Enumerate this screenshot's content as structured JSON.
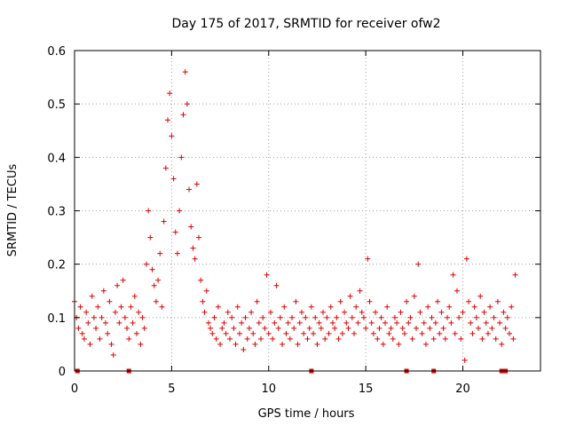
{
  "chart_data": {
    "type": "scatter",
    "title": "Day 175 of 2017, SRMTID for receiver ofw2",
    "xlabel": "GPS time / hours",
    "ylabel": "SRMTID / TECUs",
    "xlim": [
      0,
      24
    ],
    "ylim": [
      0,
      0.6
    ],
    "x_ticks": [
      0,
      5,
      10,
      15,
      20
    ],
    "y_ticks": [
      0,
      0.1,
      0.2,
      0.3,
      0.4,
      0.5,
      0.6
    ],
    "grid": true,
    "marker": "+",
    "color": "#e00000",
    "series": [
      {
        "name": "SRMTID",
        "x": [
          0.0,
          0.1,
          0.2,
          0.3,
          0.4,
          0.5,
          0.6,
          0.7,
          0.8,
          0.9,
          1.0,
          1.1,
          1.2,
          1.3,
          1.4,
          1.5,
          1.6,
          1.7,
          1.8,
          1.9,
          2.0,
          2.1,
          2.2,
          2.3,
          2.4,
          2.5,
          2.6,
          2.7,
          2.8,
          2.9,
          3.0,
          3.1,
          3.2,
          3.3,
          3.4,
          3.5,
          3.6,
          3.7,
          3.8,
          3.9,
          4.0,
          4.1,
          4.2,
          4.3,
          4.4,
          4.5,
          4.6,
          4.7,
          4.8,
          4.9,
          5.0,
          5.1,
          5.2,
          5.3,
          5.4,
          5.5,
          5.6,
          5.7,
          5.8,
          5.9,
          6.0,
          6.1,
          6.2,
          6.3,
          6.4,
          6.5,
          6.6,
          6.7,
          6.8,
          6.9,
          7.0,
          7.1,
          7.2,
          7.3,
          7.4,
          7.5,
          7.6,
          7.7,
          7.8,
          7.9,
          8.0,
          8.1,
          8.2,
          8.3,
          8.4,
          8.5,
          8.6,
          8.7,
          8.8,
          8.9,
          9.0,
          9.1,
          9.2,
          9.3,
          9.4,
          9.5,
          9.6,
          9.7,
          9.8,
          9.9,
          10.0,
          10.1,
          10.2,
          10.3,
          10.4,
          10.5,
          10.6,
          10.7,
          10.8,
          10.9,
          11.0,
          11.1,
          11.2,
          11.3,
          11.4,
          11.5,
          11.6,
          11.7,
          11.8,
          11.9,
          12.0,
          12.1,
          12.2,
          12.3,
          12.4,
          12.5,
          12.6,
          12.7,
          12.8,
          12.9,
          13.0,
          13.1,
          13.2,
          13.3,
          13.4,
          13.5,
          13.6,
          13.7,
          13.8,
          13.9,
          14.0,
          14.1,
          14.2,
          14.3,
          14.4,
          14.5,
          14.6,
          14.7,
          14.8,
          14.9,
          15.0,
          15.1,
          15.2,
          15.3,
          15.4,
          15.5,
          15.6,
          15.7,
          15.8,
          15.9,
          16.0,
          16.1,
          16.2,
          16.3,
          16.4,
          16.5,
          16.6,
          16.7,
          16.8,
          16.9,
          17.0,
          17.1,
          17.2,
          17.3,
          17.4,
          17.5,
          17.6,
          17.7,
          17.8,
          17.9,
          18.0,
          18.1,
          18.2,
          18.3,
          18.4,
          18.5,
          18.6,
          18.7,
          18.8,
          18.9,
          19.0,
          19.1,
          19.2,
          19.3,
          19.4,
          19.5,
          19.6,
          19.7,
          19.8,
          19.9,
          20.0,
          20.1,
          20.2,
          20.3,
          20.4,
          20.5,
          20.6,
          20.7,
          20.8,
          20.9,
          21.0,
          21.1,
          21.2,
          21.3,
          21.4,
          21.5,
          21.6,
          21.7,
          21.8,
          21.9,
          22.0,
          22.1,
          22.2,
          22.3,
          22.4,
          22.5,
          22.6,
          22.7
        ],
        "y": [
          0.13,
          0.1,
          0.08,
          0.12,
          0.07,
          0.06,
          0.11,
          0.09,
          0.05,
          0.14,
          0.1,
          0.08,
          0.12,
          0.06,
          0.1,
          0.15,
          0.09,
          0.07,
          0.13,
          0.05,
          0.03,
          0.11,
          0.16,
          0.09,
          0.12,
          0.17,
          0.1,
          0.08,
          0.06,
          0.12,
          0.09,
          0.14,
          0.07,
          0.11,
          0.05,
          0.1,
          0.08,
          0.2,
          0.3,
          0.25,
          0.19,
          0.16,
          0.13,
          0.17,
          0.22,
          0.12,
          0.28,
          0.38,
          0.47,
          0.52,
          0.44,
          0.36,
          0.26,
          0.22,
          0.3,
          0.4,
          0.48,
          0.56,
          0.5,
          0.34,
          0.27,
          0.23,
          0.21,
          0.35,
          0.25,
          0.17,
          0.13,
          0.11,
          0.15,
          0.09,
          0.08,
          0.07,
          0.1,
          0.06,
          0.12,
          0.05,
          0.08,
          0.09,
          0.07,
          0.11,
          0.06,
          0.1,
          0.08,
          0.05,
          0.12,
          0.07,
          0.09,
          0.04,
          0.1,
          0.06,
          0.08,
          0.11,
          0.07,
          0.05,
          0.13,
          0.09,
          0.06,
          0.1,
          0.08,
          0.18,
          0.07,
          0.11,
          0.06,
          0.09,
          0.16,
          0.08,
          0.1,
          0.05,
          0.12,
          0.07,
          0.09,
          0.06,
          0.1,
          0.08,
          0.13,
          0.05,
          0.09,
          0.11,
          0.07,
          0.1,
          0.06,
          0.08,
          0.12,
          0.07,
          0.1,
          0.05,
          0.09,
          0.08,
          0.11,
          0.06,
          0.1,
          0.07,
          0.12,
          0.09,
          0.08,
          0.1,
          0.06,
          0.13,
          0.07,
          0.11,
          0.09,
          0.08,
          0.14,
          0.1,
          0.07,
          0.12,
          0.09,
          0.15,
          0.11,
          0.1,
          0.08,
          0.21,
          0.13,
          0.09,
          0.07,
          0.11,
          0.06,
          0.08,
          0.1,
          0.05,
          0.09,
          0.12,
          0.07,
          0.08,
          0.06,
          0.1,
          0.09,
          0.05,
          0.11,
          0.08,
          0.07,
          0.13,
          0.09,
          0.1,
          0.06,
          0.14,
          0.08,
          0.2,
          0.11,
          0.07,
          0.09,
          0.05,
          0.12,
          0.08,
          0.1,
          0.06,
          0.09,
          0.13,
          0.07,
          0.11,
          0.08,
          0.06,
          0.1,
          0.12,
          0.09,
          0.18,
          0.07,
          0.15,
          0.1,
          0.06,
          0.11,
          0.02,
          0.21,
          0.13,
          0.09,
          0.07,
          0.12,
          0.1,
          0.08,
          0.14,
          0.06,
          0.11,
          0.09,
          0.07,
          0.12,
          0.08,
          0.1,
          0.06,
          0.13,
          0.09,
          0.05,
          0.11,
          0.08,
          0.1,
          0.07,
          0.12,
          0.06,
          0.18
        ]
      }
    ],
    "data_gaps_x": [
      0.15,
      2.8,
      12.2,
      17.1,
      18.5,
      22.0,
      22.2
    ]
  }
}
